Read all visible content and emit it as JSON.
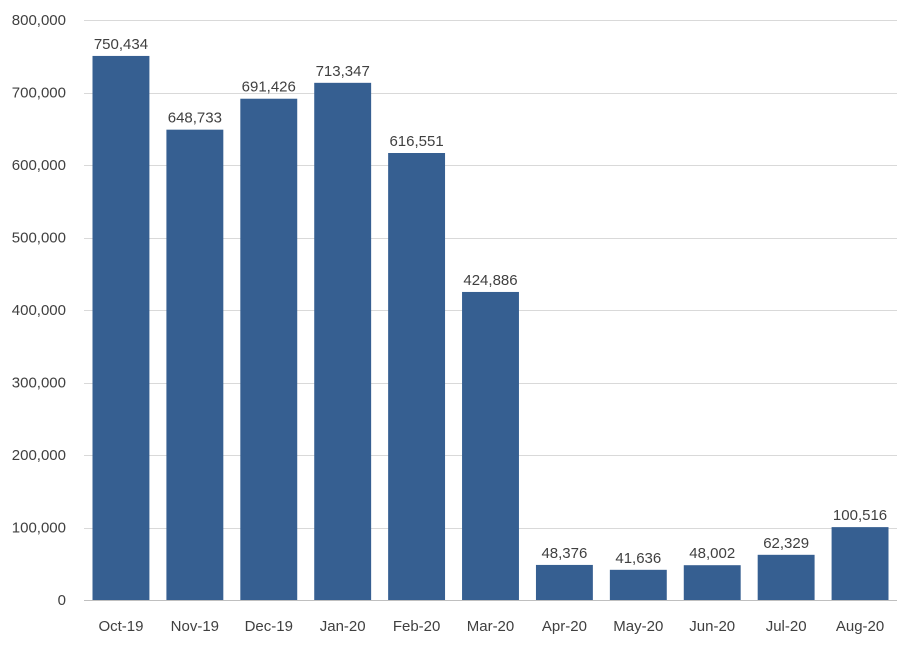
{
  "chart_data": {
    "type": "bar",
    "title": "",
    "xlabel": "",
    "ylabel": "",
    "categories": [
      "Oct-19",
      "Nov-19",
      "Dec-19",
      "Jan-20",
      "Feb-20",
      "Mar-20",
      "Apr-20",
      "May-20",
      "Jun-20",
      "Jul-20",
      "Aug-20"
    ],
    "values": [
      750434,
      648733,
      691426,
      713347,
      616551,
      424886,
      48376,
      41636,
      48002,
      62329,
      100516
    ],
    "value_labels": [
      "750,434",
      "648,733",
      "691,426",
      "713,347",
      "616,551",
      "424,886",
      "48,376",
      "41,636",
      "48,002",
      "62,329",
      "100,516"
    ],
    "ylim": [
      0,
      800000
    ],
    "yticks": [
      0,
      100000,
      200000,
      300000,
      400000,
      500000,
      600000,
      700000,
      800000
    ],
    "ytick_labels": [
      "0",
      "100,000",
      "200,000",
      "300,000",
      "400,000",
      "500,000",
      "600,000",
      "700,000",
      "800,000"
    ],
    "grid": true,
    "legend": "none",
    "bar_color": "#365f91"
  }
}
